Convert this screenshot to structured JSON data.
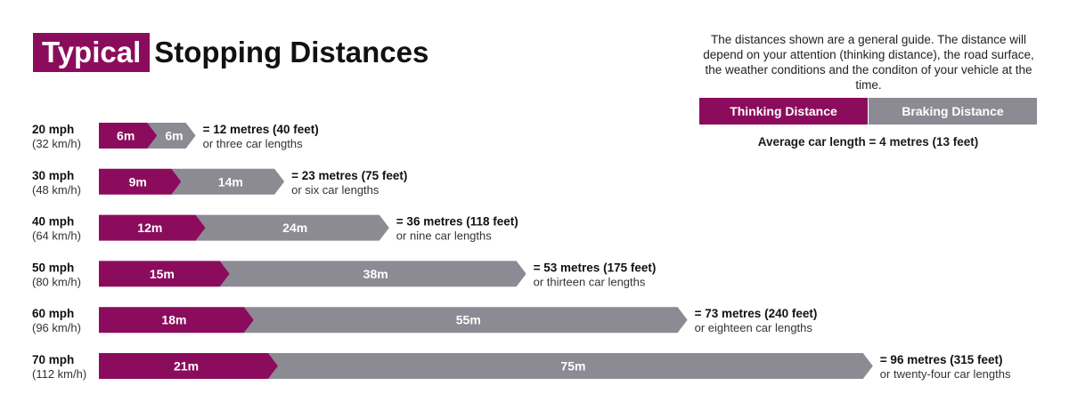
{
  "title": {
    "highlight": "Typical",
    "rest": "Stopping Distances"
  },
  "note": "The distances shown are a general guide. The distance will depend on your attention (thinking distance), the road surface, the weather conditions and the conditon of your vehicle at the time.",
  "legend": {
    "thinking": "Thinking Distance",
    "braking": "Braking Distance"
  },
  "average_car": "Average car length = 4 metres (13 feet)",
  "colors": {
    "thinking": "#8b0c5c",
    "braking": "#8c8b93"
  },
  "chart_data": {
    "type": "bar",
    "stacked": true,
    "orientation": "horizontal",
    "categories": [
      "20 mph",
      "30 mph",
      "40 mph",
      "50 mph",
      "60 mph",
      "70 mph"
    ],
    "sublabels": [
      "(32 km/h)",
      "(48 km/h)",
      "(64 km/h)",
      "(80 km/h)",
      "(96 km/h)",
      "(112 km/h)"
    ],
    "series": [
      {
        "name": "Thinking Distance",
        "values": [
          6,
          9,
          12,
          15,
          18,
          21
        ],
        "labels": [
          "6m",
          "9m",
          "12m",
          "15m",
          "18m",
          "21m"
        ]
      },
      {
        "name": "Braking Distance",
        "values": [
          6,
          14,
          24,
          38,
          55,
          75
        ],
        "labels": [
          "6m",
          "14m",
          "24m",
          "38m",
          "55m",
          "75m"
        ]
      }
    ],
    "totals": [
      "= 12 metres (40 feet)",
      "= 23 metres (75 feet)",
      "= 36 metres (118 feet)",
      "= 53 metres (175 feet)",
      "= 73 metres (240 feet)",
      "= 96 metres (315 feet)"
    ],
    "car_lengths": [
      "or three car lengths",
      "or six car lengths",
      "or nine car lengths",
      "or thirteen car lengths",
      "or eighteen car lengths",
      "or twenty-four car lengths"
    ]
  }
}
